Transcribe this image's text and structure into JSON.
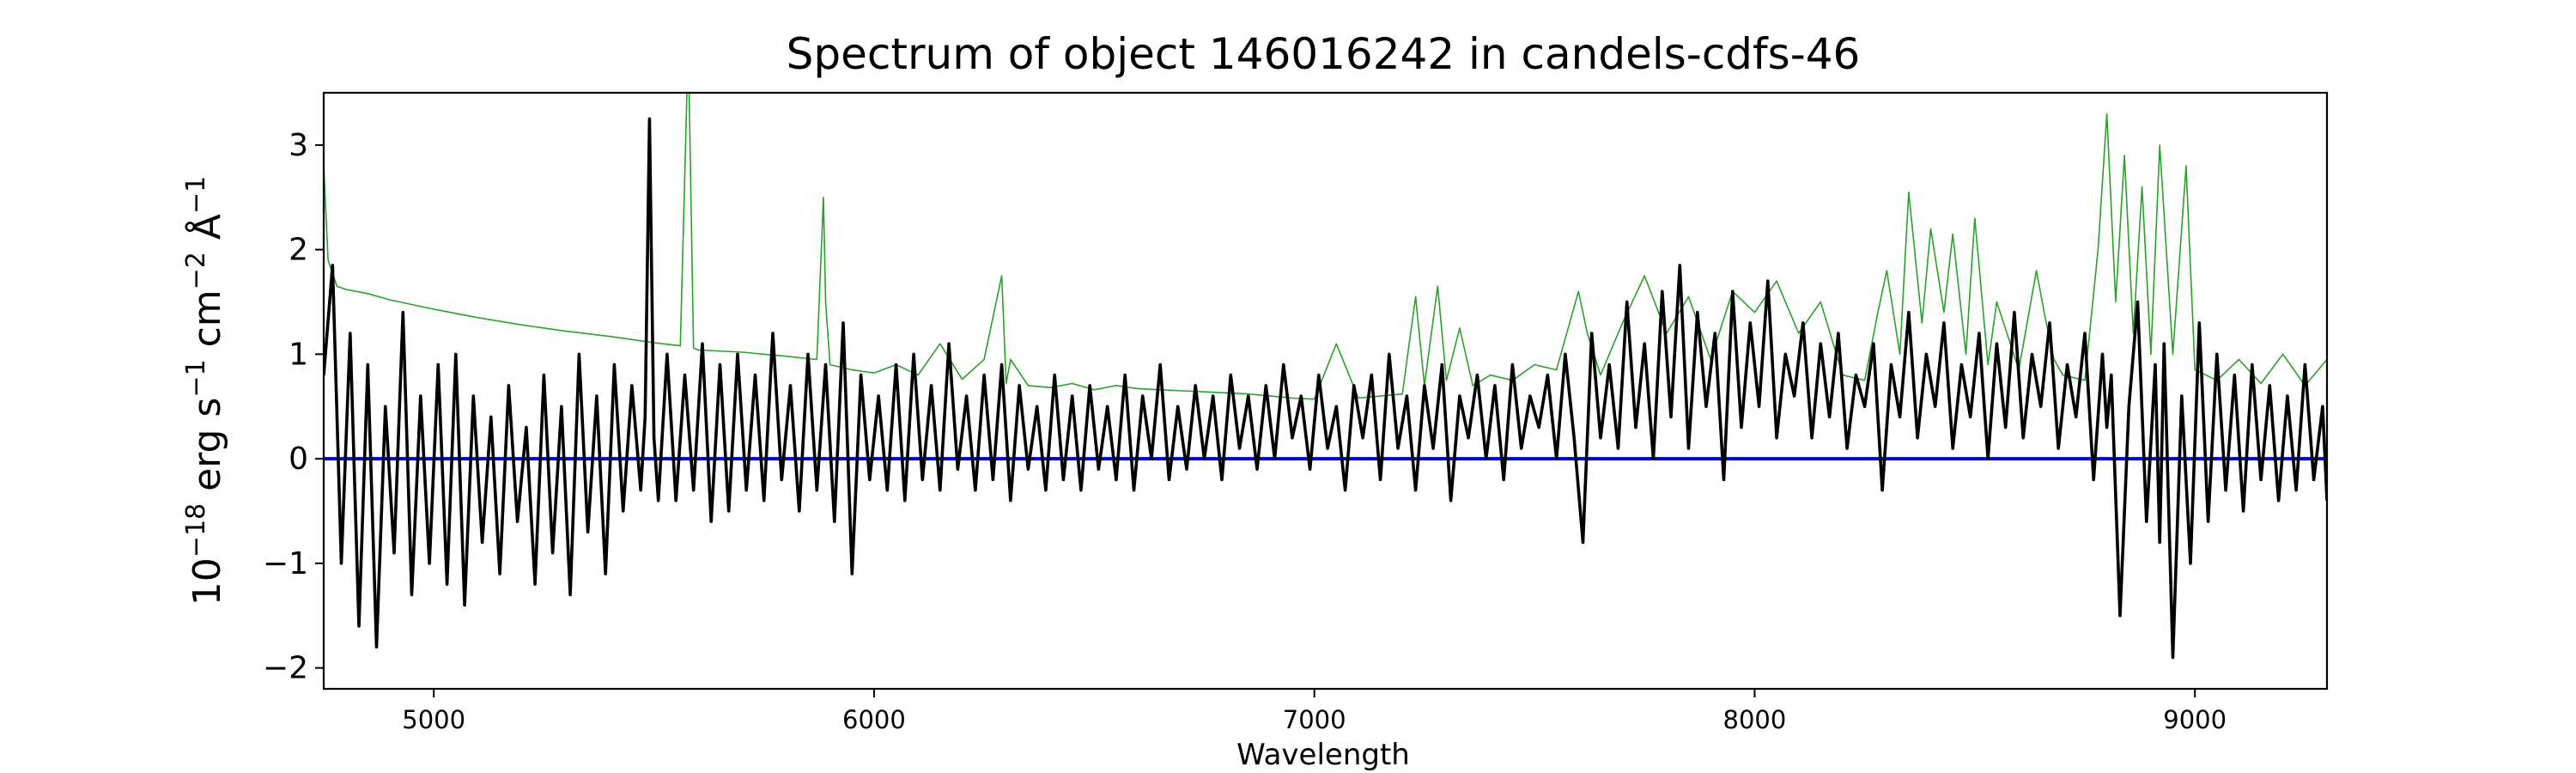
{
  "chart_data": {
    "type": "line",
    "title": "Spectrum of object 146016242 in candels-cdfs-46",
    "xlabel": "Wavelength",
    "ylabel": {
      "base": "10",
      "base_exp": "−18",
      "erg": " erg s",
      "s_exp": "−1",
      "cm": " cm",
      "cm_exp": "−2",
      "ang": " Å",
      "ang_exp": "−1"
    },
    "xlim": [
      4750,
      9300
    ],
    "ylim": [
      -2.2,
      3.5
    ],
    "x_ticks": [
      5000,
      6000,
      7000,
      8000,
      9000
    ],
    "x_tick_labels": [
      "5000",
      "6000",
      "7000",
      "8000",
      "9000"
    ],
    "y_ticks": [
      -2,
      -1,
      0,
      1,
      2,
      3
    ],
    "y_tick_labels": [
      "−2",
      "−1",
      "0",
      "1",
      "2",
      "3"
    ],
    "grid": false,
    "legend": "none",
    "series": [
      {
        "role": "error",
        "color": "#2ca02c",
        "x": [
          4750,
          4760,
          4780,
          4800,
          4850,
          4900,
          5000,
          5100,
          5200,
          5300,
          5400,
          5500,
          5560,
          5575,
          5580,
          5590,
          5600,
          5700,
          5800,
          5870,
          5885,
          5890,
          5900,
          5950,
          6000,
          6050,
          6100,
          6150,
          6200,
          6250,
          6290,
          6300,
          6310,
          6350,
          6400,
          6450,
          6500,
          6550,
          6600,
          6650,
          6700,
          6750,
          6800,
          6850,
          6900,
          6950,
          7000,
          7050,
          7100,
          7150,
          7200,
          7230,
          7250,
          7280,
          7300,
          7330,
          7360,
          7400,
          7450,
          7500,
          7550,
          7600,
          7620,
          7650,
          7700,
          7750,
          7800,
          7850,
          7900,
          7950,
          8000,
          8050,
          8100,
          8150,
          8200,
          8250,
          8280,
          8300,
          8330,
          8350,
          8380,
          8400,
          8430,
          8450,
          8480,
          8500,
          8530,
          8550,
          8600,
          8640,
          8660,
          8680,
          8700,
          8750,
          8780,
          8800,
          8820,
          8840,
          8860,
          8880,
          8900,
          8920,
          8950,
          8980,
          9000,
          9050,
          9100,
          9150,
          9200,
          9250,
          9300
        ],
        "y": [
          2.8,
          1.9,
          1.65,
          1.62,
          1.58,
          1.52,
          1.43,
          1.35,
          1.28,
          1.22,
          1.17,
          1.11,
          1.08,
          3.5,
          3.5,
          1.06,
          1.04,
          1.02,
          0.98,
          0.95,
          2.5,
          1.5,
          0.9,
          0.85,
          0.82,
          0.9,
          0.8,
          1.1,
          0.76,
          0.95,
          1.75,
          0.72,
          0.95,
          0.7,
          0.68,
          0.72,
          0.66,
          0.7,
          0.67,
          0.66,
          0.65,
          0.64,
          0.63,
          0.62,
          0.6,
          0.58,
          0.57,
          1.1,
          0.58,
          0.6,
          0.62,
          1.55,
          0.7,
          1.65,
          0.75,
          1.25,
          0.7,
          0.8,
          0.75,
          0.9,
          0.85,
          1.6,
          1.2,
          0.8,
          1.3,
          1.75,
          1.2,
          1.55,
          0.95,
          1.6,
          1.4,
          1.7,
          1.2,
          1.5,
          0.8,
          0.75,
          1.4,
          1.8,
          1.0,
          2.55,
          1.3,
          2.2,
          1.4,
          2.15,
          1.0,
          2.3,
          0.9,
          1.5,
          0.85,
          1.8,
          1.35,
          0.95,
          0.8,
          0.75,
          2.0,
          3.3,
          1.5,
          2.9,
          1.2,
          2.6,
          1.0,
          3.0,
          1.0,
          2.8,
          0.85,
          0.75,
          0.95,
          0.72,
          1.0,
          0.7,
          0.95
        ]
      },
      {
        "role": "zero",
        "color": "#0000cc",
        "x": [
          4750,
          9300
        ],
        "y": [
          0,
          0
        ]
      },
      {
        "role": "flux",
        "color": "#000000",
        "x": [
          4750,
          4770,
          4790,
          4810,
          4830,
          4850,
          4870,
          4890,
          4910,
          4930,
          4950,
          4970,
          4990,
          5010,
          5030,
          5050,
          5070,
          5090,
          5110,
          5130,
          5150,
          5170,
          5190,
          5210,
          5230,
          5250,
          5270,
          5290,
          5310,
          5330,
          5350,
          5370,
          5390,
          5410,
          5430,
          5450,
          5470,
          5480,
          5490,
          5500,
          5510,
          5530,
          5550,
          5570,
          5590,
          5610,
          5630,
          5650,
          5670,
          5690,
          5710,
          5730,
          5750,
          5770,
          5790,
          5810,
          5830,
          5850,
          5870,
          5890,
          5910,
          5930,
          5950,
          5970,
          5990,
          6010,
          6030,
          6050,
          6070,
          6090,
          6110,
          6130,
          6150,
          6170,
          6190,
          6210,
          6230,
          6250,
          6270,
          6290,
          6310,
          6330,
          6350,
          6370,
          6390,
          6410,
          6430,
          6450,
          6470,
          6490,
          6510,
          6530,
          6550,
          6570,
          6590,
          6610,
          6630,
          6650,
          6670,
          6690,
          6710,
          6730,
          6750,
          6770,
          6790,
          6810,
          6830,
          6850,
          6870,
          6890,
          6910,
          6930,
          6950,
          6970,
          6990,
          7010,
          7030,
          7050,
          7070,
          7090,
          7110,
          7130,
          7150,
          7170,
          7190,
          7210,
          7230,
          7250,
          7270,
          7290,
          7310,
          7330,
          7350,
          7370,
          7390,
          7410,
          7430,
          7450,
          7470,
          7490,
          7510,
          7530,
          7550,
          7570,
          7590,
          7610,
          7630,
          7650,
          7670,
          7690,
          7710,
          7730,
          7750,
          7770,
          7790,
          7810,
          7830,
          7850,
          7870,
          7890,
          7910,
          7930,
          7950,
          7970,
          7990,
          8010,
          8030,
          8050,
          8070,
          8090,
          8110,
          8130,
          8150,
          8170,
          8190,
          8210,
          8230,
          8250,
          8270,
          8290,
          8310,
          8330,
          8350,
          8370,
          8390,
          8410,
          8430,
          8450,
          8470,
          8490,
          8510,
          8530,
          8550,
          8570,
          8590,
          8610,
          8630,
          8650,
          8670,
          8690,
          8710,
          8730,
          8750,
          8770,
          8790,
          8800,
          8810,
          8830,
          8850,
          8870,
          8890,
          8910,
          8920,
          8930,
          8950,
          8970,
          8990,
          9010,
          9030,
          9050,
          9070,
          9090,
          9110,
          9130,
          9150,
          9170,
          9190,
          9210,
          9230,
          9250,
          9270,
          9290,
          9300
        ],
        "y": [
          0.8,
          1.85,
          -1.0,
          1.2,
          -1.6,
          0.9,
          -1.8,
          0.5,
          -0.9,
          1.4,
          -1.3,
          0.6,
          -1.0,
          0.9,
          -1.2,
          1.0,
          -1.4,
          0.6,
          -0.8,
          0.4,
          -1.1,
          0.7,
          -0.6,
          0.3,
          -1.2,
          0.8,
          -0.9,
          0.5,
          -1.3,
          1.0,
          -0.7,
          0.6,
          -1.1,
          0.9,
          -0.5,
          0.7,
          -0.3,
          0.4,
          3.25,
          0.2,
          -0.4,
          1.0,
          -0.4,
          0.8,
          -0.3,
          1.1,
          -0.6,
          0.9,
          -0.5,
          1.0,
          -0.3,
          0.8,
          -0.4,
          1.2,
          -0.2,
          0.7,
          -0.5,
          1.0,
          -0.3,
          0.9,
          -0.6,
          1.3,
          -1.1,
          0.8,
          -0.2,
          0.6,
          -0.3,
          0.9,
          -0.4,
          1.0,
          -0.2,
          0.7,
          -0.3,
          1.1,
          -0.1,
          0.6,
          -0.3,
          0.8,
          -0.2,
          0.9,
          -0.4,
          0.7,
          -0.1,
          0.5,
          -0.3,
          0.8,
          -0.2,
          0.6,
          -0.3,
          0.7,
          -0.1,
          0.5,
          -0.2,
          0.8,
          -0.3,
          0.6,
          0.0,
          0.9,
          -0.2,
          0.5,
          -0.1,
          0.7,
          0.0,
          0.6,
          -0.2,
          0.8,
          0.1,
          0.6,
          -0.1,
          0.7,
          0.0,
          0.9,
          0.2,
          0.6,
          -0.1,
          0.8,
          0.1,
          0.5,
          -0.3,
          0.7,
          0.2,
          0.8,
          -0.2,
          1.0,
          0.1,
          0.6,
          -0.3,
          0.7,
          0.1,
          0.9,
          -0.4,
          0.6,
          0.2,
          0.8,
          0.0,
          0.7,
          -0.2,
          0.9,
          0.1,
          0.6,
          0.3,
          0.8,
          0.0,
          1.0,
          0.2,
          -0.8,
          1.2,
          0.2,
          0.9,
          0.1,
          1.5,
          0.3,
          1.1,
          0.0,
          1.6,
          0.4,
          1.85,
          0.1,
          1.4,
          0.5,
          1.2,
          -0.2,
          1.6,
          0.3,
          1.3,
          0.5,
          1.7,
          0.2,
          1.0,
          0.6,
          1.3,
          0.2,
          1.1,
          0.4,
          1.2,
          0.1,
          0.8,
          0.5,
          1.1,
          -0.3,
          0.9,
          0.4,
          1.4,
          0.2,
          1.0,
          0.5,
          1.3,
          0.1,
          0.9,
          0.4,
          1.2,
          0.0,
          1.1,
          0.3,
          1.4,
          0.2,
          1.0,
          0.5,
          1.3,
          0.1,
          0.9,
          0.4,
          1.2,
          -0.2,
          1.0,
          0.3,
          0.8,
          -1.5,
          0.5,
          1.5,
          -0.6,
          0.9,
          -0.8,
          1.1,
          -1.9,
          0.6,
          -1.0,
          1.3,
          -0.6,
          1.0,
          -0.3,
          0.8,
          -0.5,
          0.9,
          -0.2,
          0.7,
          -0.4,
          0.6,
          -0.3,
          0.9,
          -0.2,
          0.5,
          -0.4
        ]
      }
    ]
  }
}
